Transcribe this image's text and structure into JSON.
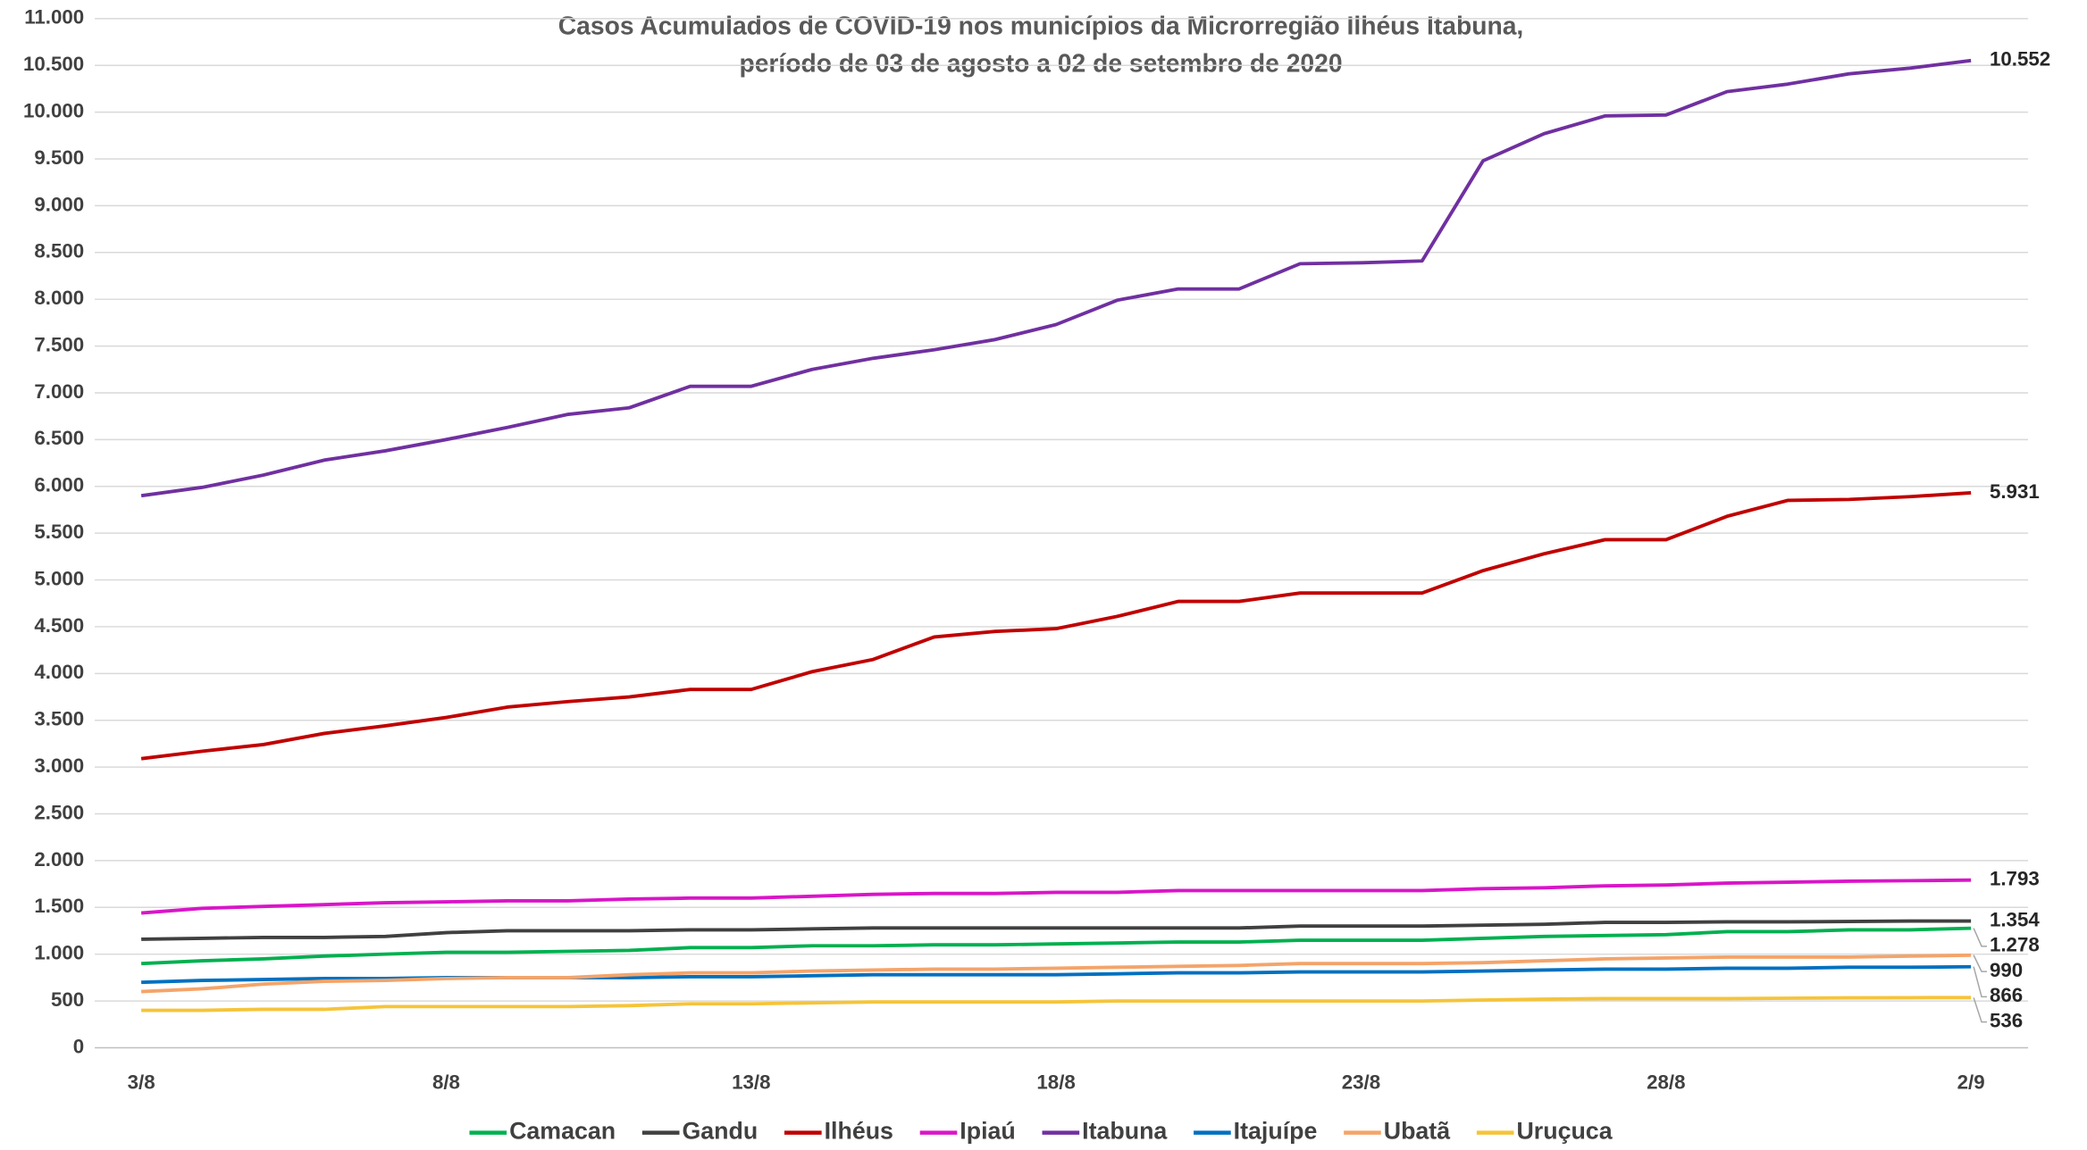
{
  "chart_data": {
    "type": "line",
    "title": [
      "Casos Acumulados de COVID-19 nos municípios da Microrregião Ilhéus Itabuna,",
      "período de 03 de agosto a  02 de setembro de 2020"
    ],
    "categories": [
      "3/8",
      null,
      null,
      null,
      null,
      "8/8",
      null,
      null,
      null,
      null,
      "13/8",
      null,
      null,
      null,
      null,
      "18/8",
      null,
      null,
      null,
      null,
      "23/8",
      null,
      null,
      null,
      null,
      "28/8",
      null,
      null,
      null,
      null,
      "2/9"
    ],
    "ylim": [
      0,
      11000
    ],
    "yticks": [
      0,
      500,
      {
        "value": 1000,
        "label": "1.000"
      },
      {
        "value": 1500,
        "label": "1.500"
      },
      {
        "value": 2000,
        "label": "2.000"
      },
      {
        "value": 2500,
        "label": "2.500"
      },
      {
        "value": 3000,
        "label": "3.000"
      },
      {
        "value": 3500,
        "label": "3.500"
      },
      {
        "value": 4000,
        "label": "4.000"
      },
      {
        "value": 4500,
        "label": "4.500"
      },
      {
        "value": 5000,
        "label": "5.000"
      },
      {
        "value": 5500,
        "label": "5.500"
      },
      {
        "value": 6000,
        "label": "6.000"
      },
      {
        "value": 6500,
        "label": "6.500"
      },
      {
        "value": 7000,
        "label": "7.000"
      },
      {
        "value": 7500,
        "label": "7.500"
      },
      {
        "value": 8000,
        "label": "8.000"
      },
      {
        "value": 8500,
        "label": "8.500"
      },
      {
        "value": 9000,
        "label": "9.000"
      },
      {
        "value": 9500,
        "label": "9.500"
      },
      {
        "value": 10000,
        "label": "10.000"
      },
      {
        "value": 10500,
        "label": "10.500"
      },
      {
        "value": 11000,
        "label": "11.000"
      }
    ],
    "grid": true,
    "legend": "bottom",
    "series": [
      {
        "name": "Camacan",
        "color": "#00b050",
        "values": [
          900,
          930,
          950,
          980,
          1000,
          1020,
          1020,
          1030,
          1040,
          1070,
          1070,
          1090,
          1090,
          1100,
          1100,
          1110,
          1120,
          1130,
          1130,
          1150,
          1150,
          1150,
          1170,
          1190,
          1200,
          1210,
          1240,
          1240,
          1260,
          1260,
          1278
        ],
        "value_labels": [
          null,
          null,
          null,
          null,
          null,
          null,
          null,
          null,
          null,
          null,
          null,
          null,
          null,
          null,
          null,
          null,
          null,
          null,
          null,
          null,
          null,
          null,
          null,
          null,
          null,
          null,
          null,
          null,
          null,
          null,
          "1.278"
        ]
      },
      {
        "name": "Gandu",
        "color": "#404040",
        "values": [
          1160,
          1170,
          1180,
          1180,
          1190,
          1230,
          1250,
          1250,
          1250,
          1260,
          1260,
          1270,
          1280,
          1280,
          1280,
          1280,
          1280,
          1280,
          1280,
          1300,
          1300,
          1300,
          1310,
          1320,
          1340,
          1340,
          1345,
          1345,
          1350,
          1354,
          1354
        ],
        "value_labels": [
          null,
          null,
          null,
          null,
          null,
          null,
          null,
          null,
          null,
          null,
          null,
          null,
          null,
          null,
          null,
          null,
          null,
          null,
          null,
          null,
          null,
          null,
          null,
          null,
          null,
          null,
          null,
          null,
          null,
          null,
          "1.354"
        ]
      },
      {
        "name": "Ilhéus",
        "color": "#c00000",
        "values": [
          3090,
          3170,
          3240,
          3360,
          3440,
          3530,
          3640,
          3700,
          3750,
          3830,
          3830,
          4020,
          4150,
          4390,
          4450,
          4480,
          4610,
          4770,
          4770,
          4860,
          4860,
          4860,
          5100,
          5280,
          5430,
          5430,
          5680,
          5850,
          5860,
          5890,
          5931
        ],
        "value_labels": [
          null,
          null,
          null,
          null,
          null,
          null,
          null,
          null,
          null,
          null,
          null,
          null,
          null,
          null,
          null,
          null,
          null,
          null,
          null,
          null,
          null,
          null,
          null,
          null,
          null,
          null,
          null,
          null,
          null,
          null,
          "5.931"
        ]
      },
      {
        "name": "Ipiaú",
        "color": "#d915c8",
        "values": [
          1440,
          1490,
          1510,
          1530,
          1550,
          1560,
          1570,
          1570,
          1590,
          1600,
          1600,
          1620,
          1640,
          1650,
          1650,
          1660,
          1660,
          1680,
          1680,
          1680,
          1680,
          1680,
          1700,
          1710,
          1730,
          1740,
          1760,
          1770,
          1780,
          1785,
          1793
        ],
        "value_labels": [
          null,
          null,
          null,
          null,
          null,
          null,
          null,
          null,
          null,
          null,
          null,
          null,
          null,
          null,
          null,
          null,
          null,
          null,
          null,
          null,
          null,
          null,
          null,
          null,
          null,
          null,
          null,
          null,
          null,
          null,
          "1.793"
        ]
      },
      {
        "name": "Itabuna",
        "color": "#7030a0",
        "values": [
          5900,
          5990,
          6120,
          6280,
          6380,
          6500,
          6630,
          6770,
          6840,
          7070,
          7070,
          7250,
          7370,
          7460,
          7570,
          7730,
          7990,
          8110,
          8110,
          8380,
          8390,
          8410,
          9480,
          9770,
          9960,
          9970,
          10220,
          10300,
          10410,
          10470,
          10552
        ],
        "value_labels": [
          null,
          null,
          null,
          null,
          null,
          null,
          null,
          null,
          null,
          null,
          null,
          null,
          null,
          null,
          null,
          null,
          null,
          null,
          null,
          null,
          null,
          null,
          null,
          null,
          null,
          null,
          null,
          null,
          null,
          null,
          "10.552"
        ]
      },
      {
        "name": "Itajuípe",
        "color": "#0070c0",
        "values": [
          700,
          720,
          730,
          740,
          740,
          750,
          750,
          750,
          750,
          760,
          760,
          770,
          780,
          780,
          780,
          780,
          790,
          800,
          800,
          810,
          810,
          810,
          820,
          830,
          840,
          840,
          850,
          850,
          860,
          860,
          866
        ],
        "value_labels": [
          null,
          null,
          null,
          null,
          null,
          null,
          null,
          null,
          null,
          null,
          null,
          null,
          null,
          null,
          null,
          null,
          null,
          null,
          null,
          null,
          null,
          null,
          null,
          null,
          null,
          null,
          null,
          null,
          null,
          null,
          "866"
        ]
      },
      {
        "name": "Ubatã",
        "color": "#f4a46a",
        "values": [
          600,
          630,
          680,
          710,
          720,
          740,
          750,
          750,
          780,
          800,
          800,
          820,
          830,
          840,
          840,
          850,
          860,
          870,
          880,
          900,
          900,
          900,
          910,
          930,
          950,
          960,
          970,
          970,
          970,
          980,
          990
        ],
        "value_labels": [
          null,
          null,
          null,
          null,
          null,
          null,
          null,
          null,
          null,
          null,
          null,
          null,
          null,
          null,
          null,
          null,
          null,
          null,
          null,
          null,
          null,
          null,
          null,
          null,
          null,
          null,
          null,
          null,
          null,
          null,
          "990"
        ]
      },
      {
        "name": "Uruçuca",
        "color": "#f5c43a",
        "values": [
          400,
          400,
          410,
          410,
          440,
          440,
          440,
          440,
          450,
          470,
          470,
          480,
          490,
          490,
          490,
          490,
          500,
          500,
          500,
          500,
          500,
          500,
          510,
          520,
          525,
          525,
          525,
          530,
          533,
          535,
          536
        ],
        "value_labels": [
          null,
          null,
          null,
          null,
          null,
          null,
          null,
          null,
          null,
          null,
          null,
          null,
          null,
          null,
          null,
          null,
          null,
          null,
          null,
          null,
          null,
          null,
          null,
          null,
          null,
          null,
          null,
          null,
          null,
          null,
          "536"
        ]
      }
    ]
  }
}
